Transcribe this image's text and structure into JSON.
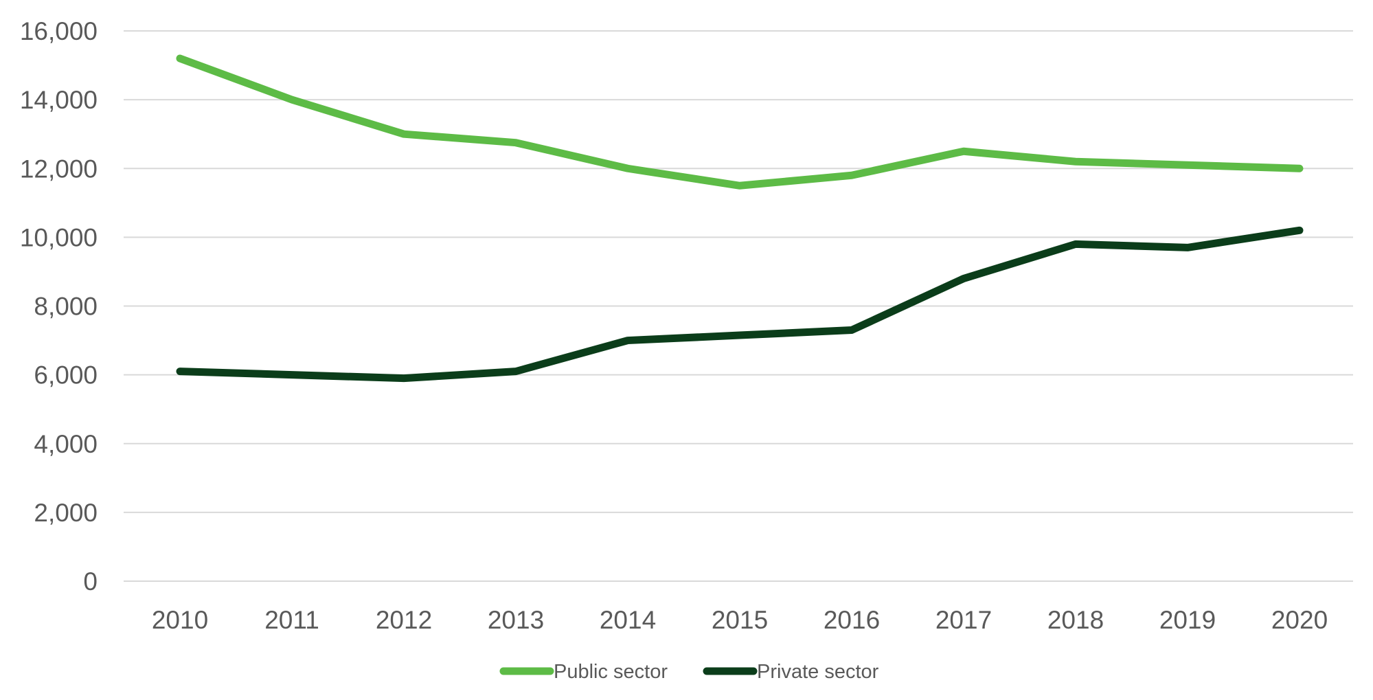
{
  "chart_data": {
    "type": "line",
    "title": "",
    "xlabel": "",
    "ylabel": "",
    "categories": [
      "2010",
      "2011",
      "2012",
      "2013",
      "2014",
      "2015",
      "2016",
      "2017",
      "2018",
      "2019",
      "2020"
    ],
    "series": [
      {
        "name": "Public sector",
        "color": "#5dbb46",
        "values": [
          15200,
          14000,
          13000,
          12750,
          12000,
          11500,
          11800,
          12500,
          12200,
          12100,
          12000
        ]
      },
      {
        "name": "Private sector",
        "color": "#0b3d1a",
        "values": [
          6100,
          6000,
          5900,
          6100,
          7000,
          7150,
          7300,
          8800,
          9800,
          9700,
          10200
        ]
      }
    ],
    "ylim": [
      0,
      16000
    ],
    "yticks": [
      "0",
      "2,000",
      "4,000",
      "6,000",
      "8,000",
      "10,000",
      "12,000",
      "14,000",
      "16,000"
    ],
    "grid": true,
    "legend": "bottom-center"
  }
}
